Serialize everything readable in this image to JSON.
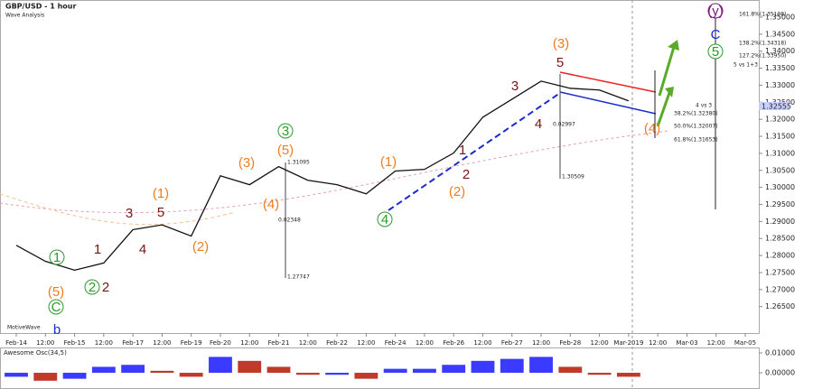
{
  "chart_data": [
    {
      "type": "line",
      "title": "GBP/USD - 1 hour",
      "subtitle": "Wave Analysis",
      "watermark": "MotiveWave",
      "categories": [
        "Feb-14",
        "12:00",
        "Feb-15",
        "12:00",
        "Feb-17",
        "12:00",
        "Feb-19",
        "Feb-20",
        "12:00",
        "Feb-21",
        "12:00",
        "Feb-22",
        "12:00",
        "Feb-24",
        "12:00",
        "Feb-26",
        "12:00",
        "Feb-27",
        "12:00",
        "Feb-28",
        "12:00",
        "Mar-2019",
        "12:00",
        "Mar-03",
        "12:00",
        "Mar-05"
      ],
      "values": [
        1.283,
        1.2783,
        1.2757,
        1.2778,
        1.2876,
        1.289,
        1.2857,
        1.3034,
        1.3008,
        1.3061,
        1.3021,
        1.3008,
        1.2981,
        1.3048,
        1.3053,
        1.3101,
        1.3206,
        1.3259,
        1.3312,
        1.3291,
        1.3286,
        1.3254,
        null,
        null,
        null,
        null
      ],
      "color": "#111111",
      "ylim": [
        1.2575,
        1.3537
      ],
      "yticks": [
        {
          "value": 1.265,
          "label": "1.26500"
        },
        {
          "value": 1.27,
          "label": "1.27000"
        },
        {
          "value": 1.275,
          "label": "1.27500"
        },
        {
          "value": 1.28,
          "label": "1.28000"
        },
        {
          "value": 1.285,
          "label": "1.28500"
        },
        {
          "value": 1.29,
          "label": "1.29000"
        },
        {
          "value": 1.295,
          "label": "1.29500"
        },
        {
          "value": 1.3,
          "label": "1.30000"
        },
        {
          "value": 1.305,
          "label": "1.30500"
        },
        {
          "value": 1.31,
          "label": "1.31000"
        },
        {
          "value": 1.315,
          "label": "1.31500"
        },
        {
          "value": 1.32,
          "label": "1.32000"
        },
        {
          "value": 1.325,
          "label": "1.32500"
        },
        {
          "value": 1.33,
          "label": "1.33000"
        },
        {
          "value": 1.335,
          "label": "1.33500"
        },
        {
          "value": 1.34,
          "label": "1.34000"
        },
        {
          "value": 1.345,
          "label": "1.34500"
        },
        {
          "value": 1.35,
          "label": "1.35000"
        }
      ],
      "last_price_label": "1.32555",
      "annotations": [
        {
          "text": "(5)",
          "color": "#f07d1c",
          "circled": false
        },
        {
          "text": "C",
          "color": "#2a9a2a",
          "circled": true
        },
        {
          "text": "b",
          "color": "#1a2ccc",
          "circled": false
        },
        {
          "text": "1",
          "color": "#2a9a2a",
          "circled": true
        },
        {
          "text": "2",
          "color": "#2a9a2a",
          "circled": true
        },
        {
          "text": "2",
          "color": "#7a1414",
          "circled": false
        },
        {
          "text": "1",
          "color": "#7a1414",
          "circled": false
        },
        {
          "text": "3",
          "color": "#7a1414",
          "circled": false
        },
        {
          "text": "4",
          "color": "#7a1414",
          "circled": false
        },
        {
          "text": "5",
          "color": "#7a1414",
          "circled": false
        },
        {
          "text": "(1)",
          "color": "#f07d1c",
          "circled": false
        },
        {
          "text": "(2)",
          "color": "#f07d1c",
          "circled": false
        },
        {
          "text": "(3)",
          "color": "#f07d1c",
          "circled": false
        },
        {
          "text": "(4)",
          "color": "#f07d1c",
          "circled": false
        },
        {
          "text": "(5)",
          "color": "#f07d1c",
          "circled": false
        },
        {
          "text": "3",
          "color": "#2a9a2a",
          "circled": true
        },
        {
          "text": "(1)",
          "color": "#f07d1c",
          "circled": false
        },
        {
          "text": "4",
          "color": "#2a9a2a",
          "circled": true
        },
        {
          "text": "(2)",
          "color": "#f07d1c",
          "circled": false
        },
        {
          "text": "1",
          "color": "#7a1414",
          "circled": false
        },
        {
          "text": "2",
          "color": "#7a1414",
          "circled": false
        },
        {
          "text": "3",
          "color": "#7a1414",
          "circled": false
        },
        {
          "text": "4",
          "color": "#7a1414",
          "circled": false
        },
        {
          "text": "5",
          "color": "#7a1414",
          "circled": false
        },
        {
          "text": "(3)",
          "color": "#f07d1c",
          "circled": false
        },
        {
          "text": "(4)",
          "color": "#f07d1c",
          "circled": false
        },
        {
          "text": "(y)",
          "color": "#7a1a7a",
          "circled": true
        },
        {
          "text": "C",
          "color": "#1a2ccc",
          "circled": false
        },
        {
          "text": "5",
          "color": "#2a9a2a",
          "circled": true
        }
      ],
      "fib_labels": [
        "161.8%(1.35108)",
        "138.2%(1.34318)",
        "127.2%(1.33950)",
        "5 vs 1+3",
        "4 vs 3",
        "38.2%(1.32380)",
        "50.0%(1.32007)",
        "61.8%(1.31653)"
      ],
      "measure_labels": [
        "1.31095",
        "0.02348",
        "1.27747",
        "0.02997",
        "1.30509"
      ]
    },
    {
      "type": "bar",
      "title": "Awesome Osc(34,5)",
      "values": [
        -0.002,
        -0.004,
        -0.003,
        0.003,
        0.004,
        0.001,
        -0.002,
        0.008,
        0.006,
        0.003,
        -0.001,
        -0.001,
        -0.003,
        0.002,
        0.002,
        0.004,
        0.006,
        0.007,
        0.008,
        0.003,
        -0.001,
        -0.002,
        null,
        null,
        null,
        null
      ],
      "up_color": "#3b3bff",
      "down_color": "#c0392b",
      "ylim": [
        -0.0068,
        0.015
      ],
      "yticks": [
        {
          "value": 0,
          "label": "0.00000"
        },
        {
          "value": 0.01,
          "label": "0.01000"
        }
      ]
    }
  ]
}
